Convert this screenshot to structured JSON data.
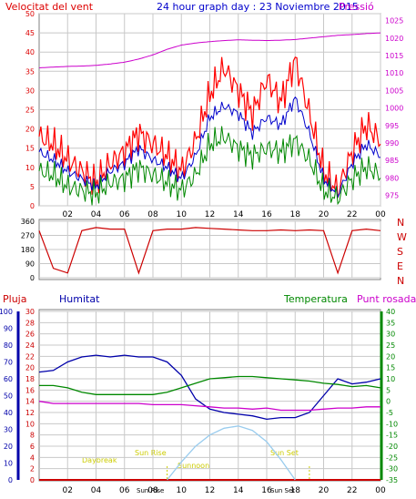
{
  "header": {
    "wind_label": "Velocitat del vent",
    "title": "24 hour graph day : 23 Noviembre 2015",
    "pressure_label": "Pressió"
  },
  "lower_header": {
    "rain_label": "Pluja",
    "humidity_label": "Humitat",
    "temperature_label": "Temperatura",
    "dewpoint_label": "Punt rosada"
  },
  "compass_letters": [
    "N",
    "W",
    "S",
    "E",
    "N"
  ],
  "sun_labels": {
    "dawn": "Daybreak",
    "sunrise": "Sun Rise",
    "sunrise_time": "Sun Rise",
    "midday": "Sunnoon",
    "sunset": "Sun Set",
    "sunset_time": "Sun Set",
    "night": "Nightfall"
  },
  "colors": {
    "wind": "#dd0000",
    "gust": "#ff0000",
    "average": "#0000cc",
    "green": "#008800",
    "pressure": "#cc00cc",
    "direction": "#cc0000",
    "humidity": "#0000aa",
    "temperature": "#008800",
    "dewpoint": "#cc00cc",
    "rain": "#cc0000",
    "sun": "#99ccee",
    "sun_text": "#cccc00",
    "grid": "#c8c8c8",
    "axis_text": "#000000"
  },
  "chart_data": [
    {
      "type": "line",
      "title": "24 hour graph day : 23 Noviembre 2015",
      "x_ticks": [
        "02",
        "04",
        "06",
        "08",
        "10",
        "12",
        "14",
        "16",
        "18",
        "20",
        "22",
        "00"
      ],
      "x": [
        0,
        1,
        2,
        3,
        4,
        5,
        6,
        7,
        8,
        9,
        10,
        11,
        12,
        13,
        14,
        15,
        16,
        17,
        18,
        19,
        20,
        21,
        22,
        23,
        24
      ],
      "y_left_label": "Velocitat del vent",
      "y_left_ticks": [
        0,
        5,
        10,
        15,
        20,
        25,
        30,
        35,
        40,
        45,
        50
      ],
      "y_left_lim": [
        0,
        50
      ],
      "y_right_label": "Pressió",
      "y_right_ticks": [
        975,
        980,
        985,
        990,
        995,
        1000,
        1005,
        1010,
        1015,
        1020,
        1025
      ],
      "y_right_lim": [
        972,
        1027
      ],
      "series": [
        {
          "name": "Gust",
          "axis": "left",
          "values": [
            18,
            16,
            12,
            9,
            6,
            11,
            14,
            19,
            16,
            13,
            9,
            17,
            29,
            36,
            30,
            24,
            33,
            27,
            38,
            24,
            9,
            4,
            14,
            21,
            17
          ]
        },
        {
          "name": "Average",
          "axis": "left",
          "values": [
            14,
            12,
            9,
            7,
            5,
            9,
            11,
            15,
            12,
            10,
            7,
            13,
            23,
            26,
            24,
            19,
            23,
            21,
            28,
            19,
            7,
            3,
            11,
            16,
            13
          ]
        },
        {
          "name": "Wind",
          "axis": "left",
          "values": [
            9,
            8,
            5,
            4,
            3,
            6,
            7,
            10,
            8,
            6,
            4,
            8,
            16,
            18,
            15,
            13,
            15,
            14,
            17,
            12,
            4,
            2,
            7,
            10,
            8
          ]
        },
        {
          "name": "Pressió",
          "axis": "right",
          "values": [
            1011.5,
            1011.7,
            1011.9,
            1012.0,
            1012.2,
            1012.6,
            1013.1,
            1014.0,
            1015.2,
            1016.8,
            1018.0,
            1018.6,
            1019.0,
            1019.3,
            1019.5,
            1019.4,
            1019.3,
            1019.4,
            1019.6,
            1020.0,
            1020.4,
            1020.8,
            1021.0,
            1021.3,
            1021.5
          ]
        }
      ]
    },
    {
      "type": "scatter",
      "title": "",
      "y_ticks": [
        0,
        90,
        180,
        270,
        360
      ],
      "y_lim": [
        0,
        360
      ],
      "x": [
        0,
        1,
        2,
        3,
        4,
        5,
        6,
        7,
        8,
        9,
        10,
        11,
        12,
        13,
        14,
        15,
        16,
        17,
        18,
        19,
        20,
        21,
        22,
        23,
        24
      ],
      "values": [
        300,
        60,
        30,
        300,
        320,
        310,
        310,
        30,
        300,
        310,
        310,
        320,
        315,
        310,
        305,
        300,
        300,
        305,
        300,
        305,
        300,
        30,
        300,
        310,
        300
      ]
    },
    {
      "type": "line",
      "title": "",
      "x_ticks": [
        "02",
        "04",
        "06",
        "08",
        "10",
        "12",
        "14",
        "16",
        "18",
        "20",
        "22",
        "00"
      ],
      "x": [
        0,
        1,
        2,
        3,
        4,
        5,
        6,
        7,
        8,
        9,
        10,
        11,
        12,
        13,
        14,
        15,
        16,
        17,
        18,
        19,
        20,
        21,
        22,
        23,
        24
      ],
      "y_left_ticks": [
        0,
        10,
        20,
        30,
        40,
        50,
        60,
        70,
        80,
        90,
        100
      ],
      "y_rain_ticks": [
        0,
        2,
        4,
        6,
        8,
        10,
        12,
        14,
        16,
        18,
        20,
        22,
        24,
        26,
        28,
        30
      ],
      "y_right_ticks": [
        -35,
        -30,
        -25,
        -20,
        -15,
        -10,
        -5,
        0,
        5,
        10,
        15,
        20,
        25,
        30,
        35,
        40
      ],
      "y_right_lim": [
        -35,
        40
      ],
      "series": [
        {
          "name": "Humitat",
          "axis": "left",
          "values": [
            64,
            65,
            70,
            73,
            74,
            73,
            74,
            73,
            73,
            70,
            62,
            48,
            42,
            40,
            39,
            38,
            36,
            37,
            37,
            40,
            50,
            60,
            57,
            58,
            60
          ]
        },
        {
          "name": "Temperatura",
          "axis": "right",
          "values": [
            7,
            7,
            6,
            4,
            3,
            3,
            3,
            3,
            3,
            4,
            6,
            8,
            10,
            10.5,
            11,
            11,
            10.5,
            10,
            9.5,
            9,
            8,
            7.5,
            6.5,
            7,
            6
          ]
        },
        {
          "name": "Punt rosada",
          "axis": "right",
          "values": [
            0,
            -1,
            -1,
            -1,
            -1,
            -1,
            -1,
            -1,
            -1.5,
            -1.5,
            -1.5,
            -2,
            -2.5,
            -3,
            -3,
            -3.5,
            -3,
            -4,
            -4,
            -4,
            -3.5,
            -3,
            -3,
            -2.5,
            -2.5
          ]
        },
        {
          "name": "Pluja",
          "axis": "rain",
          "values": [
            0,
            0,
            0,
            0,
            0,
            0,
            0,
            0,
            0,
            0,
            0,
            0,
            0,
            0,
            0,
            0,
            0,
            0,
            0,
            0,
            0,
            0,
            0,
            0,
            0
          ]
        },
        {
          "name": "Sun",
          "axis": "right",
          "values": [
            null,
            null,
            null,
            null,
            null,
            null,
            null,
            null,
            null,
            -35,
            -27,
            -20,
            -15,
            -12,
            -11,
            -13,
            -18,
            -26,
            -35,
            null,
            null,
            null,
            null,
            null,
            null
          ]
        }
      ]
    }
  ]
}
